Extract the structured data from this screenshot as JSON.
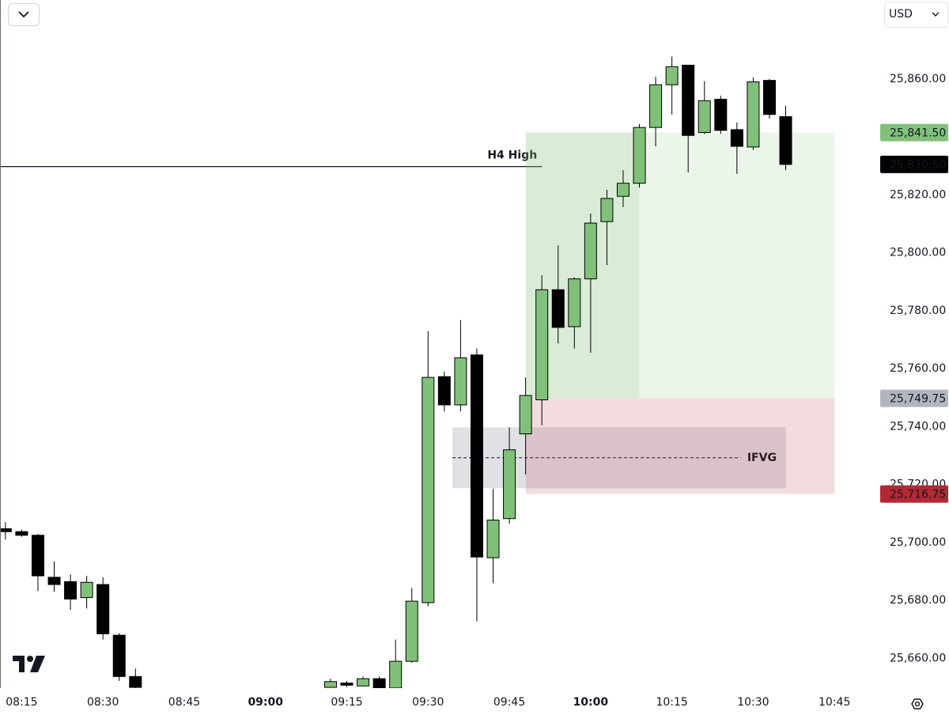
{
  "chart_data": {
    "type": "candlestick",
    "currency": "USD",
    "x": [
      "08:12",
      "08:15",
      "08:18",
      "08:21",
      "08:24",
      "08:27",
      "08:30",
      "08:33",
      "08:36",
      "09:12",
      "09:15",
      "09:18",
      "09:21",
      "09:24",
      "09:27",
      "09:30",
      "09:33",
      "09:36",
      "09:39",
      "09:42",
      "09:45",
      "09:48",
      "09:51",
      "09:54",
      "09:57",
      "10:00",
      "10:03",
      "10:06",
      "10:09",
      "10:12",
      "10:15",
      "10:18",
      "10:21",
      "10:24",
      "10:27",
      "10:30",
      "10:33",
      "10:36"
    ],
    "series": [
      {
        "up_color": "#81c07a",
        "down_color": "#000000",
        "open": [
          25704.75,
          25703.75,
          25702.5,
          25688,
          25686.5,
          25681,
          25685.5,
          25668,
          25653.75,
          25650,
          25651.5,
          25650.5,
          25653,
          25649.75,
          25659,
          25679.25,
          25757.25,
          25747.5,
          25764.75,
          25694.75,
          25708.25,
          25737.5,
          25749.25,
          25787.25,
          25774.5,
          25791,
          25810.75,
          25819.5,
          25824,
          25843.25,
          25858,
          25864.75,
          25841.5,
          25853,
          25842.5,
          25836.5,
          25859.5,
          25847
        ],
        "high": [
          25707,
          25704.5,
          25703,
          25693.5,
          25689,
          25688.5,
          25688,
          25668.75,
          25656.5,
          25653,
          25652.25,
          25653.75,
          25653.75,
          25666.5,
          25684.25,
          25773,
          25759,
          25776.75,
          25767,
          25718.5,
          25739.75,
          25757,
          25792.25,
          25802.5,
          25791.5,
          25813.5,
          25821.75,
          25828.5,
          25844.5,
          25860.75,
          25867.75,
          25864.75,
          25859.25,
          25854.25,
          25845,
          25860.5,
          25860,
          25850.75
        ],
        "low": [
          25701,
          25702,
          25683.25,
          25683,
          25676.75,
          25677.25,
          25666.5,
          25652.25,
          25648,
          25650,
          25650,
          25650.5,
          25649.75,
          25649.75,
          25658.5,
          25678,
          25745.25,
          25745.25,
          25672.75,
          25686,
          25706.5,
          25723.5,
          25740.5,
          25768.75,
          25767,
          25765.5,
          25795.75,
          25815.75,
          25822.5,
          25836.75,
          25847.75,
          25827.75,
          25841,
          25841,
          25827.25,
          25835.5,
          25846.25,
          25828.5
        ],
        "close": [
          25703.75,
          25702.5,
          25688.5,
          25685.5,
          25680.5,
          25686.25,
          25668.5,
          25653.75,
          25650,
          25652,
          25650.75,
          25653,
          25649.75,
          25659,
          25679.75,
          25757,
          25747.5,
          25763.75,
          25695,
          25707.75,
          25732,
          25750.75,
          25787.25,
          25774.25,
          25791,
          25810.25,
          25818.75,
          25824,
          25843.25,
          25858,
          25864.25,
          25840.5,
          25852.5,
          25842.25,
          25836.75,
          25859,
          25847.75,
          25830.5
        ]
      }
    ],
    "xlim": [
      "08:11",
      "10:53"
    ],
    "xticks": [
      "08:15",
      "08:30",
      "08:45",
      "09:00",
      "09:15",
      "09:30",
      "09:45",
      "10:00",
      "10:15",
      "10:30",
      "10:45"
    ],
    "ylim": [
      25649.75,
      25887.25
    ],
    "yticks": [
      {
        "value": 25660,
        "label": "25,660.00"
      },
      {
        "value": 25680,
        "label": "25,680.00"
      },
      {
        "value": 25700,
        "label": "25,700.00"
      },
      {
        "value": 25720,
        "label": "25,720.00"
      },
      {
        "value": 25740,
        "label": "25,740.00"
      },
      {
        "value": 25760,
        "label": "25,760.00"
      },
      {
        "value": 25780,
        "label": "25,780.00"
      },
      {
        "value": 25800,
        "label": "25,800.00"
      },
      {
        "value": 25820,
        "label": "25,820.00"
      },
      {
        "value": 25840,
        "label": "25,840.00"
      },
      {
        "value": 25860,
        "label": "25,860.00"
      }
    ],
    "h4_high": {
      "label": "H4 High",
      "value": 25829.75,
      "end": "09:51"
    },
    "ifvg": {
      "label": "IFVG",
      "top": 25739.75,
      "bottom": 25718.75,
      "start": "09:36",
      "end": "10:36",
      "line_end": "10:27"
    },
    "position": {
      "start": "09:48",
      "end": "10:45",
      "filled_until": "10:09",
      "target": {
        "value": 25841.5,
        "label": "25,841.50",
        "color": "#81c07a",
        "text_color": "#111111"
      },
      "entry": {
        "value": 25749.75,
        "label": "25,749.75",
        "color": "#b2b5be",
        "text_color": "#111111"
      },
      "stop": {
        "value": 25716.75,
        "label": "25,716.75",
        "color": "#b22833",
        "text_color": "#ffffff"
      }
    },
    "last_price": {
      "value": 25830.5,
      "label": "25,830.50",
      "color": "#000000",
      "text_color": "#ffffff"
    }
  }
}
